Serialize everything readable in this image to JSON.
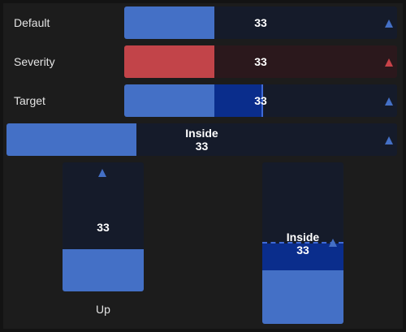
{
  "colors": {
    "background": "#1c1c1c",
    "track": "#151b2a",
    "fill_blue": "#4470c6",
    "fill_red": "#c24449",
    "track_red": "#2b181c",
    "target_blue": "#0a2d8c"
  },
  "gauges": [
    {
      "label": "Default",
      "value": "33",
      "level": 33,
      "icon": "triangle-up-icon",
      "tone": "blue"
    },
    {
      "label": "Severity",
      "value": "33",
      "level": 33,
      "icon": "triangle-up-icon",
      "tone": "red"
    },
    {
      "label": "Target",
      "value": "33",
      "level": 33,
      "target": 50,
      "icon": "triangle-up-icon",
      "tone": "blue"
    },
    {
      "label": "",
      "inside_label": "Inside",
      "value": "33",
      "level": 33,
      "icon": "triangle-up-icon",
      "tone": "blue"
    }
  ],
  "vertical_gauges": [
    {
      "label": "Up",
      "value": "33",
      "level": 33,
      "icon": "triangle-up-icon"
    },
    {
      "label": "",
      "inside_label": "Inside",
      "value": "33",
      "level": 33,
      "target": 50,
      "icon": "triangle-up-icon"
    }
  ]
}
